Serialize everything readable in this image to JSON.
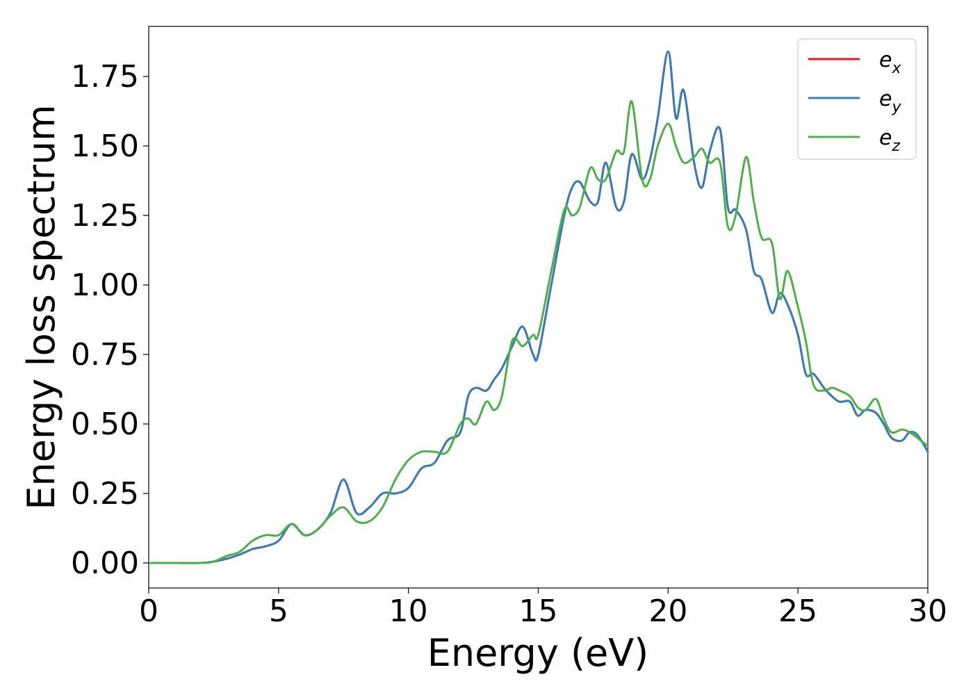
{
  "chart_data": {
    "type": "line",
    "title": "",
    "xlabel": "Energy (eV)",
    "ylabel": "Energy loss spectrum",
    "xlim": [
      0,
      30
    ],
    "ylim": [
      -0.09,
      1.93
    ],
    "xticks": [
      0,
      5,
      10,
      15,
      20,
      25,
      30
    ],
    "yticks": [
      0.0,
      0.25,
      0.5,
      0.75,
      1.0,
      1.25,
      1.5,
      1.75
    ],
    "xtick_labels": [
      "0",
      "5",
      "10",
      "15",
      "20",
      "25",
      "30"
    ],
    "ytick_labels": [
      "0.00",
      "0.25",
      "0.50",
      "0.75",
      "1.00",
      "1.25",
      "1.50",
      "1.75"
    ],
    "grid": false,
    "legend_position": "top-right",
    "series": [
      {
        "name": "e_x",
        "legend_main": "e",
        "legend_sub": "x",
        "color": "#e41a1c",
        "x": [
          0,
          1,
          2,
          2.5,
          3,
          3.5,
          4,
          4.5,
          5,
          5.5,
          6,
          6.5,
          7,
          7.5,
          8,
          8.5,
          9,
          9.5,
          10,
          10.5,
          11,
          11.5,
          12,
          12.3,
          12.6,
          13,
          13.3,
          13.6,
          14,
          14.4,
          14.8,
          15,
          15.5,
          16,
          16.3,
          16.6,
          17,
          17.3,
          17.6,
          18,
          18.3,
          18.6,
          19,
          19.3,
          19.6,
          20,
          20.3,
          20.6,
          21,
          21.3,
          21.6,
          22,
          22.3,
          22.6,
          23,
          23.3,
          23.6,
          24,
          24.3,
          24.6,
          25,
          25.3,
          25.6,
          26,
          26.3,
          26.6,
          27,
          27.3,
          27.6,
          28,
          28.3,
          28.6,
          29,
          29.3,
          29.6,
          30
        ],
        "y": [
          0.0,
          0.0,
          0.0,
          0.005,
          0.015,
          0.03,
          0.05,
          0.06,
          0.08,
          0.14,
          0.1,
          0.12,
          0.18,
          0.3,
          0.18,
          0.2,
          0.25,
          0.25,
          0.27,
          0.34,
          0.36,
          0.44,
          0.47,
          0.6,
          0.63,
          0.62,
          0.66,
          0.7,
          0.78,
          0.85,
          0.75,
          0.75,
          1.0,
          1.25,
          1.35,
          1.37,
          1.3,
          1.3,
          1.44,
          1.28,
          1.3,
          1.47,
          1.38,
          1.45,
          1.6,
          1.84,
          1.6,
          1.7,
          1.44,
          1.35,
          1.48,
          1.56,
          1.28,
          1.27,
          1.2,
          1.05,
          1.02,
          0.9,
          0.97,
          0.93,
          0.82,
          0.68,
          0.68,
          0.63,
          0.6,
          0.58,
          0.58,
          0.53,
          0.55,
          0.54,
          0.5,
          0.45,
          0.44,
          0.47,
          0.46,
          0.4
        ]
      },
      {
        "name": "e_y",
        "legend_main": "e",
        "legend_sub": "y",
        "color": "#377eb8",
        "x": [
          0,
          1,
          2,
          2.5,
          3,
          3.5,
          4,
          4.5,
          5,
          5.5,
          6,
          6.5,
          7,
          7.5,
          8,
          8.5,
          9,
          9.5,
          10,
          10.5,
          11,
          11.5,
          12,
          12.3,
          12.6,
          13,
          13.3,
          13.6,
          14,
          14.4,
          14.8,
          15,
          15.5,
          16,
          16.3,
          16.6,
          17,
          17.3,
          17.6,
          18,
          18.3,
          18.6,
          19,
          19.3,
          19.6,
          20,
          20.3,
          20.6,
          21,
          21.3,
          21.6,
          22,
          22.3,
          22.6,
          23,
          23.3,
          23.6,
          24,
          24.3,
          24.6,
          25,
          25.3,
          25.6,
          26,
          26.3,
          26.6,
          27,
          27.3,
          27.6,
          28,
          28.3,
          28.6,
          29,
          29.3,
          29.6,
          30
        ],
        "y": [
          0.0,
          0.0,
          0.0,
          0.005,
          0.015,
          0.03,
          0.05,
          0.06,
          0.08,
          0.14,
          0.1,
          0.12,
          0.18,
          0.3,
          0.18,
          0.2,
          0.25,
          0.25,
          0.27,
          0.34,
          0.36,
          0.44,
          0.47,
          0.6,
          0.63,
          0.62,
          0.66,
          0.7,
          0.78,
          0.85,
          0.75,
          0.75,
          1.0,
          1.25,
          1.35,
          1.37,
          1.3,
          1.3,
          1.44,
          1.28,
          1.3,
          1.47,
          1.38,
          1.45,
          1.6,
          1.84,
          1.6,
          1.7,
          1.44,
          1.35,
          1.48,
          1.56,
          1.28,
          1.27,
          1.2,
          1.05,
          1.02,
          0.9,
          0.97,
          0.93,
          0.82,
          0.68,
          0.68,
          0.63,
          0.6,
          0.58,
          0.58,
          0.53,
          0.55,
          0.54,
          0.5,
          0.45,
          0.44,
          0.47,
          0.46,
          0.4
        ]
      },
      {
        "name": "e_z",
        "legend_main": "e",
        "legend_sub": "z",
        "color": "#4daf4a",
        "x": [
          0,
          1,
          2,
          2.5,
          3,
          3.5,
          4,
          4.5,
          5,
          5.5,
          6,
          6.5,
          7,
          7.5,
          8,
          8.5,
          9,
          9.5,
          10,
          10.5,
          11,
          11.5,
          12,
          12.3,
          12.6,
          13,
          13.3,
          13.6,
          14,
          14.4,
          14.8,
          15,
          15.5,
          16,
          16.3,
          16.6,
          17,
          17.3,
          17.6,
          18,
          18.3,
          18.6,
          19,
          19.3,
          19.6,
          20,
          20.3,
          20.6,
          21,
          21.3,
          21.6,
          22,
          22.3,
          22.6,
          23,
          23.3,
          23.6,
          24,
          24.3,
          24.6,
          25,
          25.3,
          25.6,
          26,
          26.3,
          26.6,
          27,
          27.3,
          27.6,
          28,
          28.3,
          28.6,
          29,
          29.3,
          29.6,
          30
        ],
        "y": [
          0.0,
          0.0,
          0.0,
          0.005,
          0.025,
          0.04,
          0.08,
          0.1,
          0.1,
          0.14,
          0.1,
          0.12,
          0.17,
          0.2,
          0.15,
          0.15,
          0.2,
          0.3,
          0.37,
          0.4,
          0.4,
          0.4,
          0.5,
          0.52,
          0.5,
          0.58,
          0.55,
          0.6,
          0.8,
          0.78,
          0.82,
          0.82,
          1.05,
          1.27,
          1.25,
          1.28,
          1.42,
          1.38,
          1.38,
          1.48,
          1.48,
          1.66,
          1.38,
          1.38,
          1.5,
          1.58,
          1.5,
          1.44,
          1.46,
          1.49,
          1.44,
          1.44,
          1.21,
          1.25,
          1.46,
          1.3,
          1.17,
          1.15,
          0.95,
          1.05,
          0.92,
          0.8,
          0.64,
          0.62,
          0.63,
          0.62,
          0.6,
          0.56,
          0.55,
          0.59,
          0.52,
          0.47,
          0.48,
          0.47,
          0.45,
          0.42
        ]
      }
    ]
  }
}
